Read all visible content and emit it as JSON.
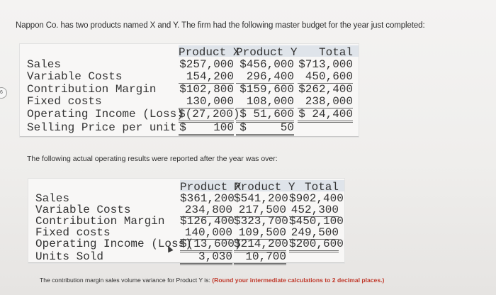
{
  "intro_text": "Nappon Co. has two products named X and Y. The firm had the following master budget for the year just completed:",
  "side_badge": "6",
  "master_budget": {
    "headers": [
      "Product X",
      "Product Y",
      "Total"
    ],
    "rows": [
      {
        "label": "Sales",
        "x": "$257,000",
        "y": "$456,000",
        "total": "$713,000"
      },
      {
        "label": "Variable Costs",
        "x": "154,200",
        "y": "296,400",
        "total": "450,600"
      },
      {
        "label": "Contribution Margin",
        "x": "$102,800",
        "y": "$159,600",
        "total": "$262,400"
      },
      {
        "label": "Fixed costs",
        "x": "130,000",
        "y": "108,000",
        "total": "238,000"
      },
      {
        "label": "Operating Income (Loss)",
        "x": "$(27,200)",
        "y": "$ 51,600",
        "total": "$ 24,400"
      },
      {
        "label": "Selling Price per unit",
        "x": "$    100",
        "y": "$     50",
        "total": ""
      }
    ]
  },
  "actual_intro": "The following actual operating results were reported after the year was over:",
  "actual_results": {
    "headers": [
      "Product X",
      "Product Y",
      "Total"
    ],
    "rows": [
      {
        "label": "Sales",
        "x": "$361,200",
        "y": "$541,200",
        "total": "$902,400"
      },
      {
        "label": "Variable Costs",
        "x": "234,800",
        "y": "217,500",
        "total": "452,300"
      },
      {
        "label": "Contribution Margin",
        "x": "$126,400",
        "y": "$323,700",
        "total": "$450,100"
      },
      {
        "label": "Fixed costs",
        "x": "140,000",
        "y": "109,500",
        "total": "249,500"
      },
      {
        "label": "Operating Income (Loss)",
        "x": "$(13,600)",
        "y": "$214,200",
        "total": "$200,600"
      },
      {
        "label": "Units Sold",
        "x": "3,030",
        "y": "10,700",
        "total": ""
      }
    ]
  },
  "question": {
    "text": "The contribution margin sales volume variance for Product Y is:",
    "instruction": "(Round your intermediate calculations to 2 decimal places.)"
  }
}
